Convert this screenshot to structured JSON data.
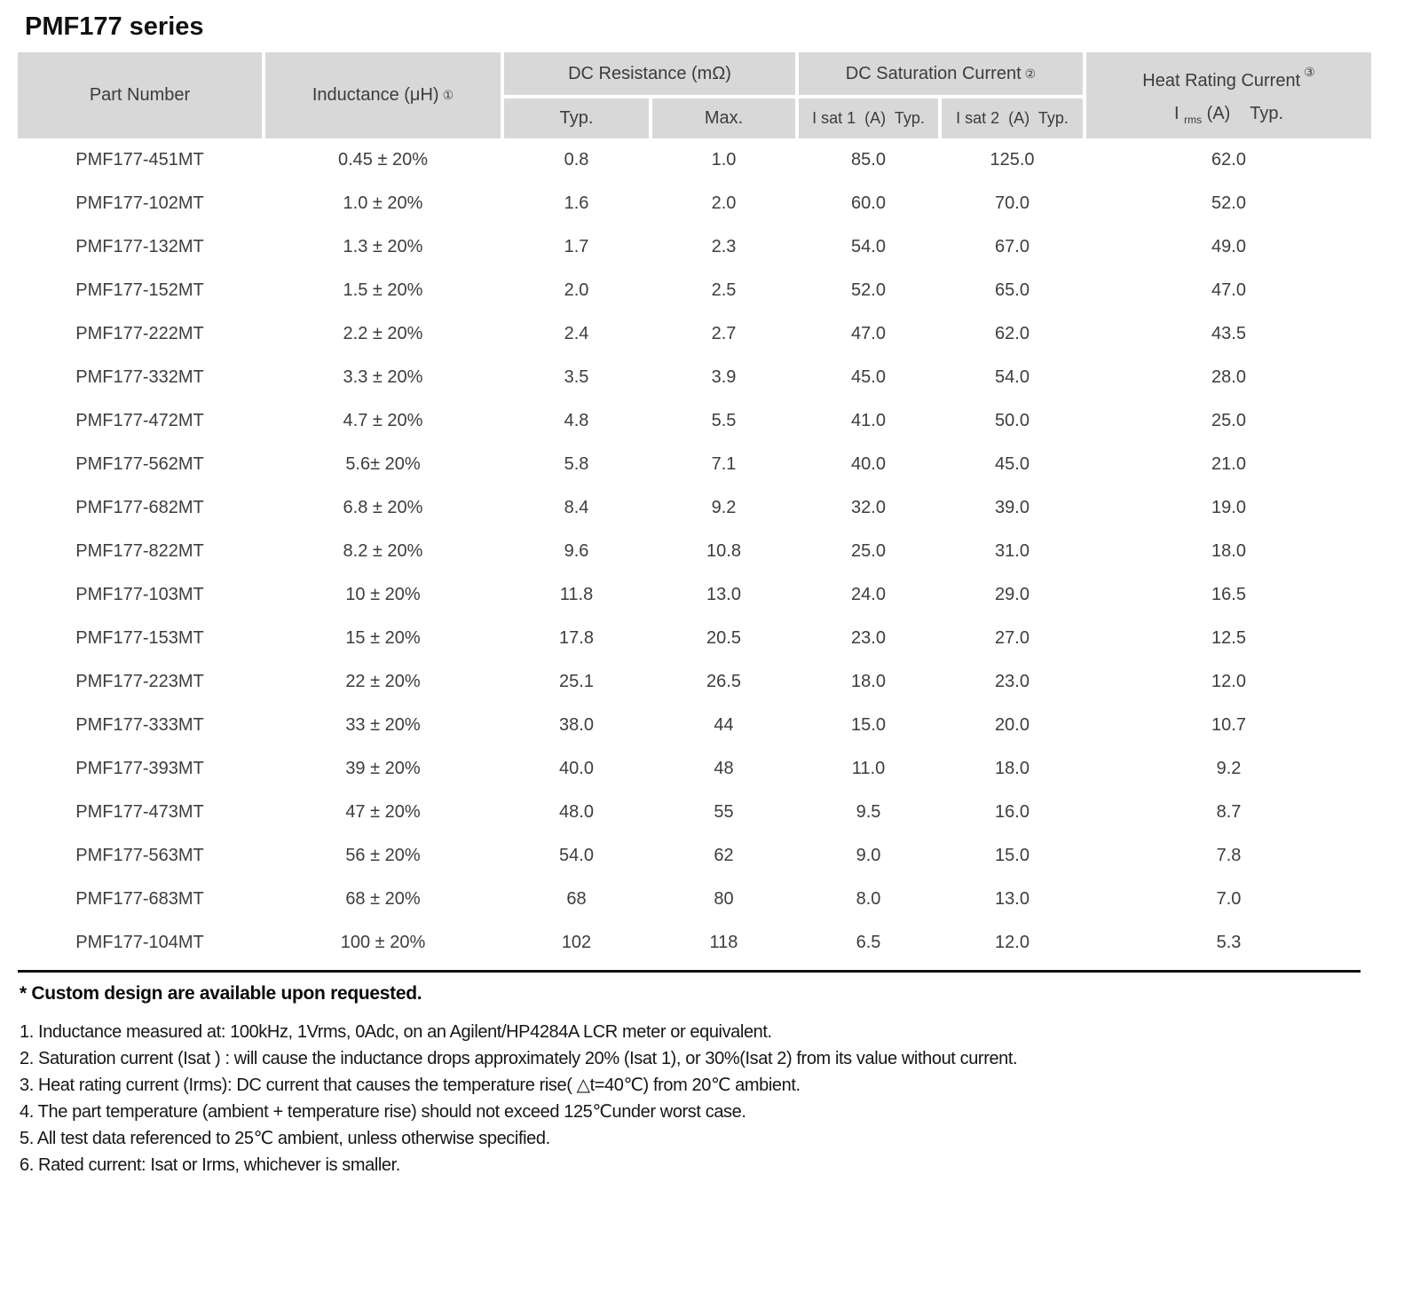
{
  "title": "PMF177 series",
  "table": {
    "header": {
      "part_number": "Part Number",
      "inductance_label": "Inductance (μH)",
      "inductance_note": "①",
      "dc_resistance_label": "DC Resistance (mΩ)",
      "dcr_typ": "Typ.",
      "dcr_max": "Max.",
      "dc_saturation_label": "DC Saturation Current",
      "dc_saturation_note": "②",
      "isat1": "I sat 1  (A)  Typ.",
      "isat2": "I sat 2  (A)  Typ.",
      "heat_rating_label": "Heat Rating Current",
      "heat_rating_note": "③",
      "irms_prefix": "I ",
      "irms_sub": "rms",
      "irms_rest": " (A)    Typ."
    },
    "rows": [
      {
        "part_number": "PMF177-451MT",
        "inductance": "0.45 ± 20%",
        "dcr_typ": "0.8",
        "dcr_max": "1.0",
        "isat1": "85.0",
        "isat2": "125.0",
        "irms": "62.0"
      },
      {
        "part_number": "PMF177-102MT",
        "inductance": "1.0 ± 20%",
        "dcr_typ": "1.6",
        "dcr_max": "2.0",
        "isat1": "60.0",
        "isat2": "70.0",
        "irms": "52.0"
      },
      {
        "part_number": "PMF177-132MT",
        "inductance": "1.3 ± 20%",
        "dcr_typ": "1.7",
        "dcr_max": "2.3",
        "isat1": "54.0",
        "isat2": "67.0",
        "irms": "49.0"
      },
      {
        "part_number": "PMF177-152MT",
        "inductance": "1.5 ± 20%",
        "dcr_typ": "2.0",
        "dcr_max": "2.5",
        "isat1": "52.0",
        "isat2": "65.0",
        "irms": "47.0"
      },
      {
        "part_number": "PMF177-222MT",
        "inductance": "2.2 ± 20%",
        "dcr_typ": "2.4",
        "dcr_max": "2.7",
        "isat1": "47.0",
        "isat2": "62.0",
        "irms": "43.5"
      },
      {
        "part_number": "PMF177-332MT",
        "inductance": "3.3 ± 20%",
        "dcr_typ": "3.5",
        "dcr_max": "3.9",
        "isat1": "45.0",
        "isat2": "54.0",
        "irms": "28.0"
      },
      {
        "part_number": "PMF177-472MT",
        "inductance": "4.7 ± 20%",
        "dcr_typ": "4.8",
        "dcr_max": "5.5",
        "isat1": "41.0",
        "isat2": "50.0",
        "irms": "25.0"
      },
      {
        "part_number": "PMF177-562MT",
        "inductance": "5.6± 20%",
        "dcr_typ": "5.8",
        "dcr_max": "7.1",
        "isat1": "40.0",
        "isat2": "45.0",
        "irms": "21.0"
      },
      {
        "part_number": "PMF177-682MT",
        "inductance": "6.8 ± 20%",
        "dcr_typ": "8.4",
        "dcr_max": "9.2",
        "isat1": "32.0",
        "isat2": "39.0",
        "irms": "19.0"
      },
      {
        "part_number": "PMF177-822MT",
        "inductance": "8.2 ± 20%",
        "dcr_typ": "9.6",
        "dcr_max": "10.8",
        "isat1": "25.0",
        "isat2": "31.0",
        "irms": "18.0"
      },
      {
        "part_number": "PMF177-103MT",
        "inductance": "10 ± 20%",
        "dcr_typ": "11.8",
        "dcr_max": "13.0",
        "isat1": "24.0",
        "isat2": "29.0",
        "irms": "16.5"
      },
      {
        "part_number": "PMF177-153MT",
        "inductance": "15 ± 20%",
        "dcr_typ": "17.8",
        "dcr_max": "20.5",
        "isat1": "23.0",
        "isat2": "27.0",
        "irms": "12.5"
      },
      {
        "part_number": "PMF177-223MT",
        "inductance": "22 ± 20%",
        "dcr_typ": "25.1",
        "dcr_max": "26.5",
        "isat1": "18.0",
        "isat2": "23.0",
        "irms": "12.0"
      },
      {
        "part_number": "PMF177-333MT",
        "inductance": "33 ± 20%",
        "dcr_typ": "38.0",
        "dcr_max": "44",
        "isat1": "15.0",
        "isat2": "20.0",
        "irms": "10.7"
      },
      {
        "part_number": "PMF177-393MT",
        "inductance": "39 ± 20%",
        "dcr_typ": "40.0",
        "dcr_max": "48",
        "isat1": "11.0",
        "isat2": "18.0",
        "irms": "9.2"
      },
      {
        "part_number": "PMF177-473MT",
        "inductance": "47 ± 20%",
        "dcr_typ": "48.0",
        "dcr_max": "55",
        "isat1": "9.5",
        "isat2": "16.0",
        "irms": "8.7"
      },
      {
        "part_number": "PMF177-563MT",
        "inductance": "56 ± 20%",
        "dcr_typ": "54.0",
        "dcr_max": "62",
        "isat1": "9.0",
        "isat2": "15.0",
        "irms": "7.8"
      },
      {
        "part_number": "PMF177-683MT",
        "inductance": "68 ± 20%",
        "dcr_typ": "68",
        "dcr_max": "80",
        "isat1": "8.0",
        "isat2": "13.0",
        "irms": "7.0"
      },
      {
        "part_number": "PMF177-104MT",
        "inductance": "100 ± 20%",
        "dcr_typ": "102",
        "dcr_max": "118",
        "isat1": "6.5",
        "isat2": "12.0",
        "irms": "5.3"
      }
    ]
  },
  "footnotes": {
    "custom": "* Custom design are available upon requested.",
    "notes": [
      "1. Inductance measured at: 100kHz, 1Vrms, 0Adc, on an Agilent/HP4284A LCR meter or equivalent.",
      "2. Saturation current (Isat ) : will cause the inductance drops approximately 20% (Isat 1), or 30%(Isat 2) from its value without current.",
      "3. Heat rating current (Irms): DC current that causes the temperature rise( △t=40℃) from 20℃ ambient.",
      "4. The part temperature (ambient + temperature rise) should not exceed 125℃under worst case.",
      "5. All test data referenced to 25℃ ambient, unless otherwise specified.",
      "6. Rated current: Isat or Irms, whichever is smaller."
    ]
  }
}
